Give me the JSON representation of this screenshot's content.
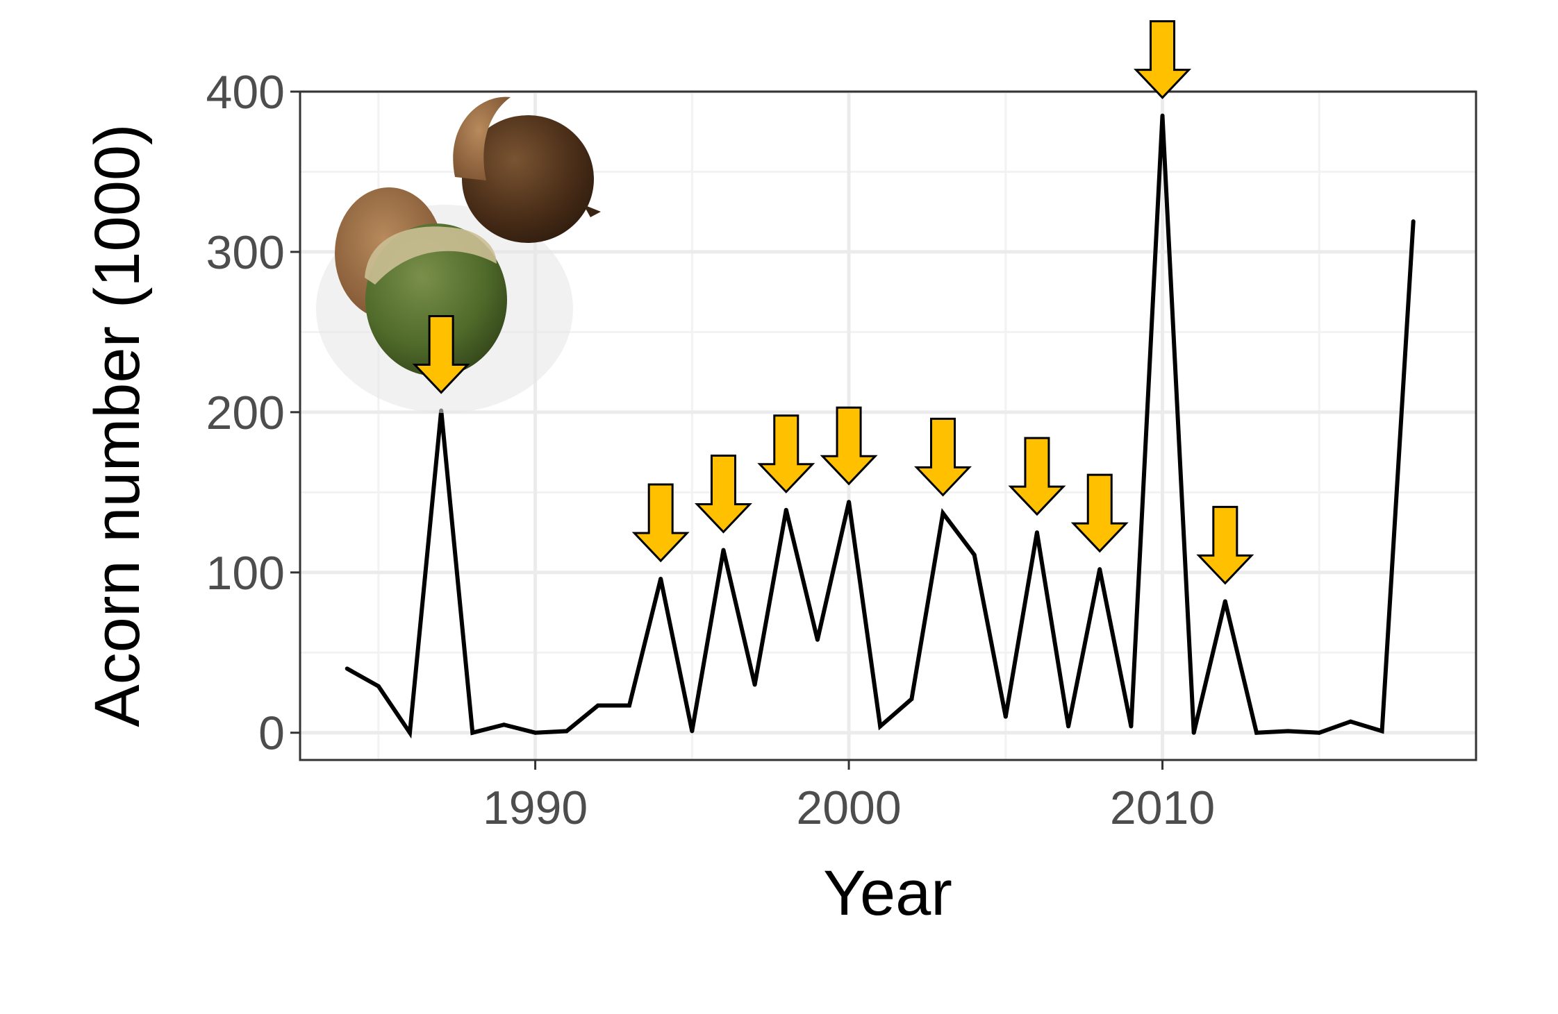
{
  "chart_data": {
    "type": "line",
    "title": "",
    "xlabel": "Year",
    "ylabel": "Acorn number (1000)",
    "xlim": [
      1982.5,
      2020.0
    ],
    "ylim": [
      -17,
      400
    ],
    "x_ticks": [
      1990,
      2000,
      2010
    ],
    "y_ticks": [
      0,
      100,
      200,
      300,
      400
    ],
    "grid": true,
    "legend": "none",
    "series": [
      {
        "color": "#000000",
        "x": [
          1984,
          1985,
          1986,
          1987,
          1988,
          1989,
          1990,
          1991,
          1992,
          1993,
          1994,
          1995,
          1996,
          1997,
          1998,
          1999,
          2000,
          2001,
          2002,
          2003,
          2004,
          2005,
          2006,
          2007,
          2008,
          2009,
          2010,
          2011,
          2012,
          2013,
          2014,
          2015,
          2016,
          2017,
          2018
        ],
        "y": [
          40,
          29,
          0,
          201,
          0,
          5,
          0,
          1,
          17,
          17,
          96,
          1,
          114,
          30,
          139,
          58,
          144,
          4,
          21,
          137,
          111,
          10,
          125,
          4,
          102,
          4,
          385,
          0,
          82,
          0,
          1,
          0,
          7,
          1,
          319
        ]
      }
    ],
    "annotations": {
      "arrow_years": [
        1987,
        1994,
        1996,
        1998,
        2000,
        2003,
        2006,
        2008,
        2010,
        2012
      ],
      "arrow_color": "#FFC000",
      "image": "acorns-photo"
    }
  }
}
